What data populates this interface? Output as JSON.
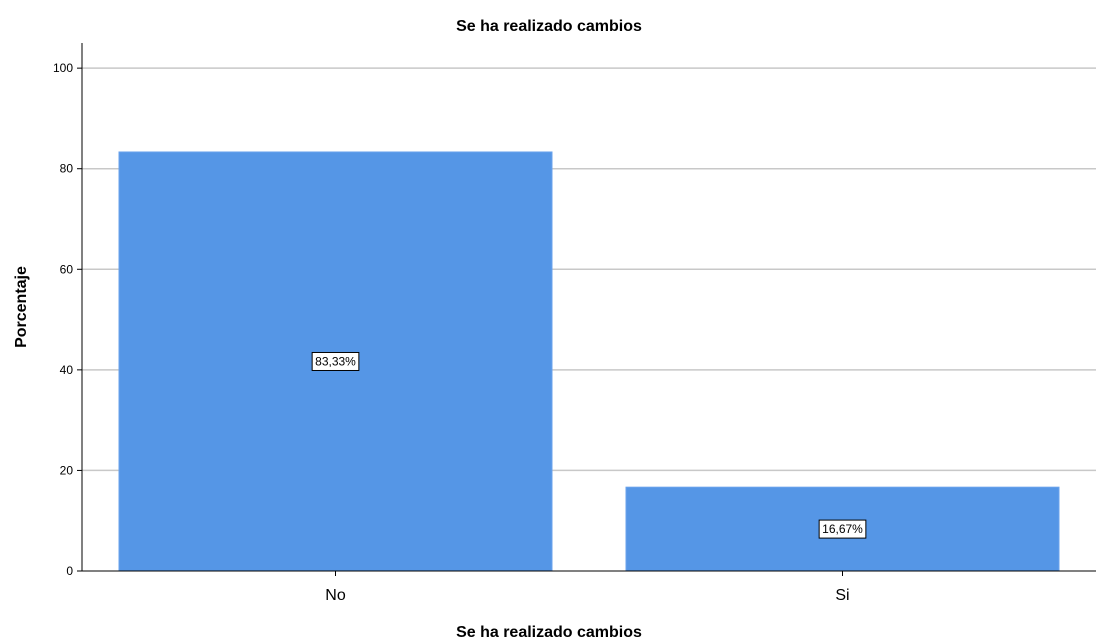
{
  "colors": {
    "bar": "#5596e6",
    "bar_outline": "#6aa3ec",
    "grid": "#c8c8c8",
    "axis": "#000000",
    "label_box_fill": "#ffffff",
    "label_box_stroke": "#000000"
  },
  "chart_data": {
    "type": "bar",
    "title": "Se ha realizado cambios",
    "xlabel": "Se ha realizado cambios",
    "ylabel": "Porcentaje",
    "categories": [
      "No",
      "Si"
    ],
    "values": [
      83.33,
      16.67
    ],
    "data_labels": [
      "83,33%",
      "16,67%"
    ],
    "ylim": [
      0,
      105
    ],
    "yticks": [
      0,
      20,
      40,
      60,
      80,
      100
    ],
    "ytick_labels": [
      "0",
      "20",
      "40",
      "60",
      "80",
      "100"
    ],
    "grid": true,
    "legend": "none"
  }
}
